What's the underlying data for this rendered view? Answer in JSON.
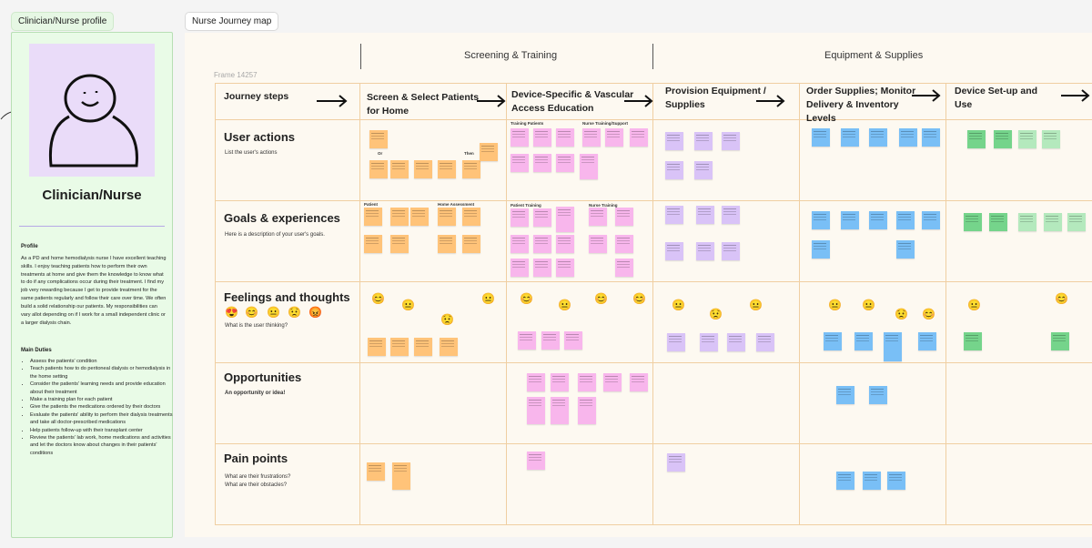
{
  "tags": {
    "persona_tag": "Clinician/Nurse profile",
    "map_tag": "Nurse Journey map"
  },
  "persona": {
    "name": "Clinician/Nurse",
    "profile_heading": "Profile",
    "profile_text": "As a PD and home hemodialysis nurse I have excellent teaching skills. I enjoy teaching patients how to perform their own treatments at home and give them the knowledge to know what to do if any complications occur during their treatment. I find my job very rewarding because I get to provide treatment for the same patients regularly and follow their care over time. We often build a solid relationship our patients. My responsibilities can vary allot depending on if I work for a small independent clinic or a larger dialysis chain.",
    "duties_heading": "Main Duties",
    "duties": [
      "Assess the patients' condition",
      "Teach patients how to do peritoneal dialysis or hemodialysis in the home setting",
      "Consider the patients' learning needs and provide education about their treatment",
      "Make a training plan for each patient",
      "Give the patients the medications ordered by their doctors",
      "Evaluate the patients' ability to perform their dialysis treatments and take all doctor-prescribed medications",
      "Help patients follow-up with their transplant center",
      "Review the patients' lab work, home medications and activities and let the doctors know about changes in their patients' conditions"
    ]
  },
  "board": {
    "frame_name": "Frame 14257",
    "stages": [
      "Screening & Training",
      "Equipment & Supplies"
    ],
    "header_label": "Journey steps",
    "steps": [
      "Screen & Select Patients for Home",
      "Device-Specific & Vascular Access Education",
      "Provision Equipment / Supplies",
      "Order Supplies; Monitor Delivery & Inventory Levels",
      "Device Set-up and Use"
    ],
    "rows": [
      {
        "title": "User actions",
        "desc": "List the user's actions"
      },
      {
        "title": "Goals & experiences",
        "desc": "Here is a description of your user's goals."
      },
      {
        "title": "Feelings and thoughts",
        "desc": "What is the user thinking?"
      },
      {
        "title": "Opportunities",
        "desc": "An opportunity or idea!"
      },
      {
        "title": "Pain points",
        "desc": "What are their frustrations?\nWhat are their obstacles?"
      }
    ],
    "sub_labels": {
      "or": "Or",
      "then": "Then",
      "patient": "Patient",
      "home_assessment": "Home Assessment",
      "training_patients": "Training Patients",
      "nurse_training_support": "Nurse Training/Support",
      "patient_training": "Patient Training",
      "nurse_training": "Nurse Training"
    }
  },
  "colors": {
    "orange_note": "#ffc379",
    "pink_note": "#f8b6ec",
    "purple_note": "#d9c3f7",
    "blue_note": "#79bff6",
    "green_note": "#75d48b",
    "light_green_note": "#b4e9bd",
    "grid_line": "#f0cfa2",
    "persona_bg": "#e9fbe7"
  }
}
